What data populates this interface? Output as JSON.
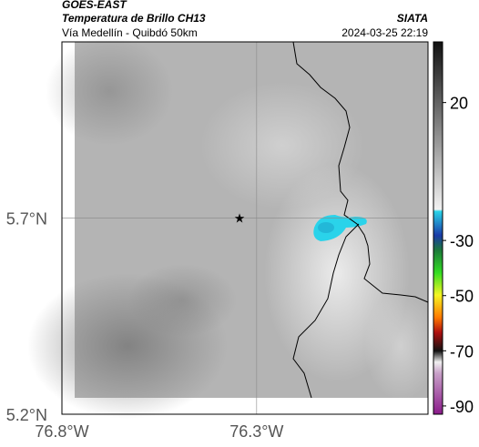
{
  "header": {
    "product": "GOES-EAST",
    "title": "Temperatura de Brillo CH13",
    "subtitle": "Vía Medellín - Quibdó 50km",
    "source": "SIATA",
    "datetime": "2024-03-25 22:19"
  },
  "map": {
    "xlim": [
      -76.8,
      -75.86
    ],
    "ylim": [
      5.2,
      6.15
    ],
    "xticks": [
      {
        "value": -76.8,
        "label": "76.8°W"
      },
      {
        "value": -76.3,
        "label": "76.3°W"
      }
    ],
    "yticks": [
      {
        "value": 5.7,
        "label": "5.7°N"
      },
      {
        "value": 5.2,
        "label": "5.2°N"
      }
    ]
  },
  "colorbar": {
    "lim": [
      -93,
      42
    ],
    "ticks": [
      20,
      -30,
      -50,
      -70,
      -90
    ]
  }
}
